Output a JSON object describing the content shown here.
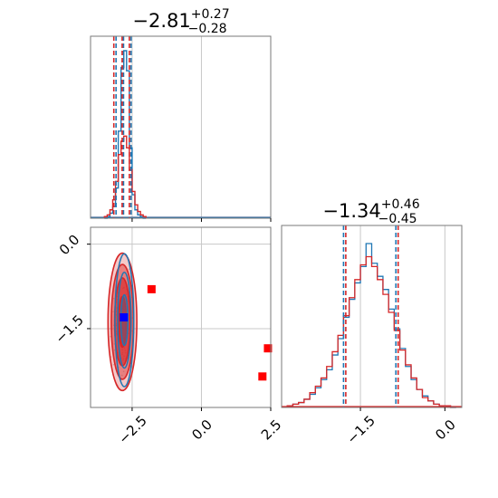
{
  "colors": {
    "blue": "#1f77b4",
    "red": "#d62728",
    "marker_red": "#ff0000",
    "marker_blue": "#0000ff",
    "grid": "#c8c8c8",
    "frame": "#7a7a7a"
  },
  "chart_data": [
    {
      "type": "histogram",
      "panel": "top-left marginal (parameter 1)",
      "title": {
        "main": "−2.81",
        "sup": "+0.27",
        "sub": "−0.28"
      },
      "xlim": [
        -4.0,
        2.5
      ],
      "grid": true,
      "quantile_lines": {
        "blue": [
          -3.08,
          -2.81,
          -2.54
        ],
        "red": [
          -3.16,
          -2.86,
          -2.6
        ]
      },
      "bin_edges": [
        -3.5,
        -3.4,
        -3.3,
        -3.2,
        -3.1,
        -3.0,
        -2.9,
        -2.8,
        -2.7,
        -2.6,
        -2.5,
        -2.4,
        -2.3,
        -2.2,
        -2.1,
        -2.0
      ],
      "series": [
        {
          "color_key": "blue",
          "counts": [
            0,
            0.01,
            0.03,
            0.07,
            0.18,
            0.52,
            0.9,
            1.0,
            0.88,
            0.42,
            0.14,
            0.05,
            0.02,
            0.01,
            0
          ]
        },
        {
          "color_key": "red",
          "counts": [
            0.01,
            0.02,
            0.05,
            0.11,
            0.22,
            0.38,
            0.46,
            0.49,
            0.42,
            0.29,
            0.16,
            0.08,
            0.04,
            0.02,
            0.01
          ]
        }
      ]
    },
    {
      "type": "contour",
      "panel": "bottom-left 2D (parameter 1 vs parameter 2)",
      "xlim": [
        -4.0,
        2.5
      ],
      "ylim": [
        -2.9,
        0.3
      ],
      "xticks": [
        -2.5,
        0.0,
        2.5
      ],
      "xticklabels": [
        "−2.5",
        "0.0",
        "2.5"
      ],
      "yticks": [
        0.0,
        -1.5
      ],
      "yticklabels": [
        "0.0",
        "−1.5"
      ],
      "grid": true,
      "contours": {
        "red": {
          "center": [
            -2.85,
            -1.38
          ],
          "rx": [
            0.52,
            0.4,
            0.28,
            0.14
          ],
          "ry": [
            1.22,
            1.02,
            0.78,
            0.45
          ]
        },
        "blue": {
          "center": [
            -2.78,
            -1.35
          ],
          "rx": [
            0.34,
            0.24,
            0.13
          ],
          "ry": [
            1.18,
            0.85,
            0.45
          ]
        }
      },
      "markers": [
        {
          "x": -1.8,
          "y": -0.8,
          "color_key": "marker_red"
        },
        {
          "x": 2.4,
          "y": -1.85,
          "color_key": "marker_red"
        },
        {
          "x": 2.2,
          "y": -2.35,
          "color_key": "marker_red"
        },
        {
          "x": -2.8,
          "y": -1.3,
          "color_key": "marker_blue"
        }
      ]
    },
    {
      "type": "histogram",
      "panel": "bottom-right marginal (parameter 2)",
      "title": {
        "main": "−1.34",
        "sup": "+0.46",
        "sub": "−0.45"
      },
      "xlim": [
        -2.9,
        0.3
      ],
      "xticks": [
        -1.5,
        0.0
      ],
      "xticklabels": [
        "−1.5",
        "0.0"
      ],
      "grid": true,
      "quantile_lines": {
        "blue": [
          -1.8,
          -0.87
        ],
        "red": [
          -1.76,
          -0.83
        ]
      },
      "bin_edges": [
        -2.8,
        -2.7,
        -2.6,
        -2.5,
        -2.4,
        -2.3,
        -2.2,
        -2.1,
        -2.0,
        -1.9,
        -1.8,
        -1.7,
        -1.6,
        -1.5,
        -1.4,
        -1.3,
        -1.2,
        -1.1,
        -1.0,
        -0.9,
        -0.8,
        -0.7,
        -0.6,
        -0.5,
        -0.4,
        -0.3,
        -0.2,
        -0.1,
        0.0,
        0.1,
        0.2
      ],
      "series": [
        {
          "color_key": "blue",
          "counts": [
            0.01,
            0.02,
            0.03,
            0.05,
            0.08,
            0.12,
            0.17,
            0.23,
            0.32,
            0.42,
            0.55,
            0.66,
            0.76,
            0.86,
            1.0,
            0.88,
            0.8,
            0.72,
            0.6,
            0.48,
            0.36,
            0.25,
            0.17,
            0.11,
            0.07,
            0.04,
            0.02,
            0.01,
            0.01,
            0.0
          ]
        },
        {
          "color_key": "red",
          "counts": [
            0.01,
            0.02,
            0.03,
            0.05,
            0.09,
            0.13,
            0.18,
            0.25,
            0.34,
            0.44,
            0.56,
            0.67,
            0.78,
            0.87,
            0.92,
            0.86,
            0.78,
            0.69,
            0.58,
            0.47,
            0.35,
            0.26,
            0.18,
            0.11,
            0.06,
            0.04,
            0.02,
            0.01,
            0.01,
            0.0
          ]
        }
      ]
    }
  ]
}
